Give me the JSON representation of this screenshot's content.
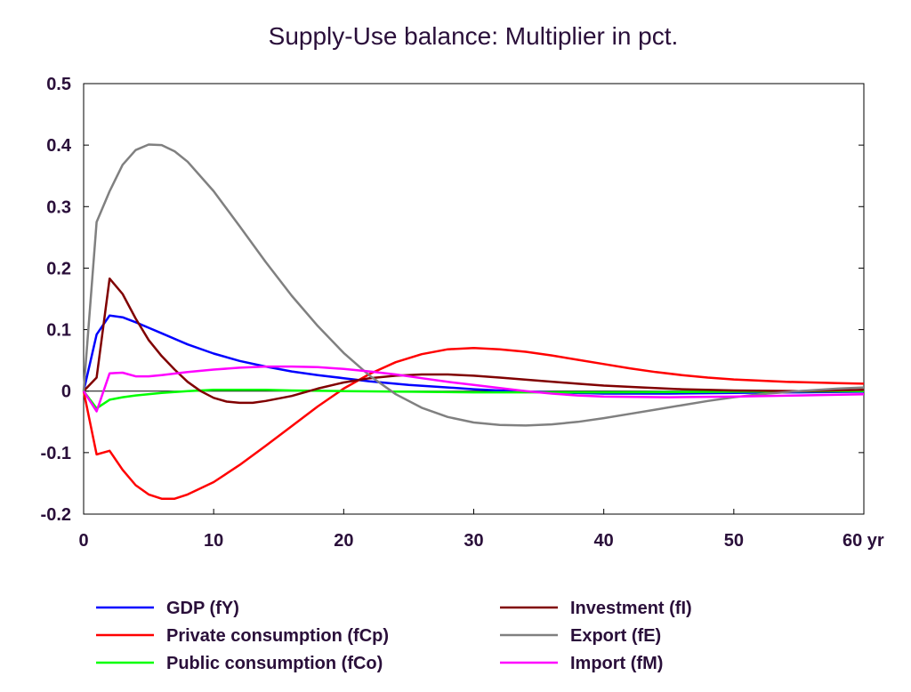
{
  "chart_data": {
    "type": "line",
    "title": "Supply-Use balance: Multiplier in pct.",
    "xlabel": "",
    "ylabel": "",
    "xlim": [
      0,
      60
    ],
    "ylim": [
      -0.2,
      0.5
    ],
    "x_ticks": [
      {
        "value": 0,
        "label": "0"
      },
      {
        "value": 10,
        "label": "10"
      },
      {
        "value": 20,
        "label": "20"
      },
      {
        "value": 30,
        "label": "30"
      },
      {
        "value": 40,
        "label": "40"
      },
      {
        "value": 50,
        "label": "50"
      },
      {
        "value": 60,
        "label": "60 yr"
      }
    ],
    "y_ticks": [
      {
        "value": -0.2,
        "label": "-0.2"
      },
      {
        "value": -0.1,
        "label": "-0.1"
      },
      {
        "value": 0,
        "label": "0"
      },
      {
        "value": 0.1,
        "label": "0.1"
      },
      {
        "value": 0.2,
        "label": "0.2"
      },
      {
        "value": 0.3,
        "label": "0.3"
      },
      {
        "value": 0.4,
        "label": "0.4"
      },
      {
        "value": 0.5,
        "label": "0.5"
      }
    ],
    "zero_line": true,
    "grid": false,
    "legend_position": "bottom",
    "series": [
      {
        "name": "GDP (fY)",
        "color": "#0000ff",
        "points": [
          [
            0,
            0
          ],
          [
            1,
            0.092
          ],
          [
            2,
            0.123
          ],
          [
            3,
            0.12
          ],
          [
            4,
            0.112
          ],
          [
            5,
            0.103
          ],
          [
            6,
            0.094
          ],
          [
            8,
            0.076
          ],
          [
            10,
            0.061
          ],
          [
            12,
            0.049
          ],
          [
            14,
            0.04
          ],
          [
            16,
            0.032
          ],
          [
            18,
            0.026
          ],
          [
            20,
            0.021
          ],
          [
            22,
            0.016
          ],
          [
            25,
            0.01
          ],
          [
            28,
            0.006
          ],
          [
            30,
            0.003
          ],
          [
            33,
            0.0
          ],
          [
            36,
            -0.002
          ],
          [
            40,
            -0.004
          ],
          [
            45,
            -0.004
          ],
          [
            50,
            -0.003
          ],
          [
            55,
            -0.002
          ],
          [
            60,
            -0.001
          ]
        ]
      },
      {
        "name": "Private consumption (fCp)",
        "color": "#ff0000",
        "points": [
          [
            0,
            0
          ],
          [
            1,
            -0.103
          ],
          [
            2,
            -0.097
          ],
          [
            3,
            -0.128
          ],
          [
            4,
            -0.153
          ],
          [
            5,
            -0.168
          ],
          [
            6,
            -0.175
          ],
          [
            7,
            -0.175
          ],
          [
            8,
            -0.168
          ],
          [
            10,
            -0.148
          ],
          [
            12,
            -0.12
          ],
          [
            14,
            -0.089
          ],
          [
            16,
            -0.057
          ],
          [
            18,
            -0.025
          ],
          [
            20,
            0.004
          ],
          [
            22,
            0.028
          ],
          [
            24,
            0.047
          ],
          [
            26,
            0.06
          ],
          [
            28,
            0.068
          ],
          [
            30,
            0.07
          ],
          [
            32,
            0.068
          ],
          [
            34,
            0.064
          ],
          [
            36,
            0.058
          ],
          [
            38,
            0.051
          ],
          [
            40,
            0.044
          ],
          [
            42,
            0.037
          ],
          [
            44,
            0.031
          ],
          [
            46,
            0.026
          ],
          [
            48,
            0.022
          ],
          [
            50,
            0.019
          ],
          [
            54,
            0.015
          ],
          [
            58,
            0.013
          ],
          [
            60,
            0.012
          ]
        ]
      },
      {
        "name": "Public consumption (fCo)",
        "color": "#00ff00",
        "points": [
          [
            0,
            0
          ],
          [
            1,
            -0.028
          ],
          [
            2,
            -0.014
          ],
          [
            3,
            -0.01
          ],
          [
            4,
            -0.007
          ],
          [
            6,
            -0.003
          ],
          [
            8,
            0.0
          ],
          [
            10,
            0.002
          ],
          [
            12,
            0.002
          ],
          [
            14,
            0.002
          ],
          [
            16,
            0.001
          ],
          [
            20,
            0.0
          ],
          [
            25,
            -0.001
          ],
          [
            30,
            -0.002
          ],
          [
            40,
            -0.002
          ],
          [
            50,
            -0.001
          ],
          [
            60,
            0.0
          ]
        ]
      },
      {
        "name": "Investment (fI)",
        "color": "#800000",
        "points": [
          [
            0,
            0
          ],
          [
            1,
            0.022
          ],
          [
            2,
            0.183
          ],
          [
            3,
            0.158
          ],
          [
            4,
            0.118
          ],
          [
            5,
            0.083
          ],
          [
            6,
            0.057
          ],
          [
            7,
            0.035
          ],
          [
            8,
            0.015
          ],
          [
            9,
            0.0
          ],
          [
            10,
            -0.011
          ],
          [
            11,
            -0.017
          ],
          [
            12,
            -0.019
          ],
          [
            13,
            -0.019
          ],
          [
            14,
            -0.016
          ],
          [
            16,
            -0.008
          ],
          [
            18,
            0.004
          ],
          [
            20,
            0.014
          ],
          [
            22,
            0.021
          ],
          [
            24,
            0.025
          ],
          [
            26,
            0.027
          ],
          [
            28,
            0.027
          ],
          [
            30,
            0.025
          ],
          [
            32,
            0.022
          ],
          [
            35,
            0.017
          ],
          [
            38,
            0.012
          ],
          [
            40,
            0.009
          ],
          [
            43,
            0.006
          ],
          [
            46,
            0.003
          ],
          [
            50,
            0.001
          ],
          [
            55,
            0.0
          ],
          [
            60,
            0.002
          ]
        ]
      },
      {
        "name": "Export (fE)",
        "color": "#808080",
        "points": [
          [
            0,
            0
          ],
          [
            1,
            0.275
          ],
          [
            2,
            0.325
          ],
          [
            3,
            0.368
          ],
          [
            4,
            0.392
          ],
          [
            5,
            0.401
          ],
          [
            6,
            0.4
          ],
          [
            7,
            0.39
          ],
          [
            8,
            0.373
          ],
          [
            10,
            0.325
          ],
          [
            12,
            0.268
          ],
          [
            14,
            0.21
          ],
          [
            16,
            0.155
          ],
          [
            18,
            0.106
          ],
          [
            20,
            0.062
          ],
          [
            22,
            0.025
          ],
          [
            24,
            -0.005
          ],
          [
            26,
            -0.027
          ],
          [
            28,
            -0.042
          ],
          [
            30,
            -0.051
          ],
          [
            32,
            -0.055
          ],
          [
            34,
            -0.056
          ],
          [
            36,
            -0.054
          ],
          [
            38,
            -0.05
          ],
          [
            40,
            -0.044
          ],
          [
            42,
            -0.037
          ],
          [
            44,
            -0.03
          ],
          [
            46,
            -0.023
          ],
          [
            48,
            -0.016
          ],
          [
            50,
            -0.01
          ],
          [
            52,
            -0.005
          ],
          [
            55,
            0.0
          ],
          [
            58,
            0.004
          ],
          [
            60,
            0.006
          ]
        ]
      },
      {
        "name": "Import (fM)",
        "color": "#ff00ff",
        "points": [
          [
            0,
            0
          ],
          [
            1,
            -0.033
          ],
          [
            2,
            0.029
          ],
          [
            3,
            0.03
          ],
          [
            4,
            0.024
          ],
          [
            5,
            0.024
          ],
          [
            6,
            0.026
          ],
          [
            8,
            0.031
          ],
          [
            10,
            0.035
          ],
          [
            12,
            0.038
          ],
          [
            14,
            0.04
          ],
          [
            16,
            0.04
          ],
          [
            18,
            0.039
          ],
          [
            20,
            0.036
          ],
          [
            22,
            0.032
          ],
          [
            24,
            0.027
          ],
          [
            26,
            0.021
          ],
          [
            28,
            0.015
          ],
          [
            30,
            0.01
          ],
          [
            32,
            0.005
          ],
          [
            34,
            0.0
          ],
          [
            36,
            -0.004
          ],
          [
            38,
            -0.007
          ],
          [
            40,
            -0.009
          ],
          [
            45,
            -0.01
          ],
          [
            50,
            -0.009
          ],
          [
            55,
            -0.007
          ],
          [
            60,
            -0.005
          ]
        ]
      }
    ]
  }
}
